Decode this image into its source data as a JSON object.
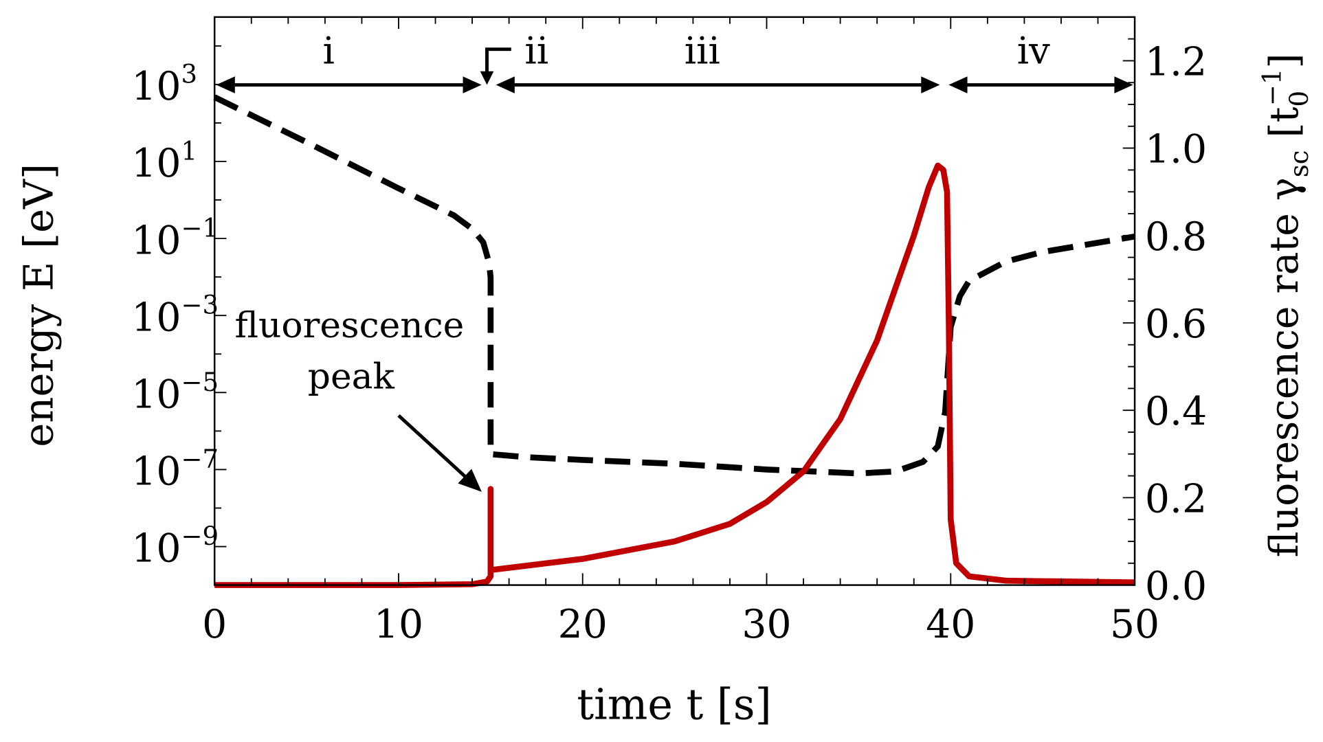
{
  "chart_data": {
    "type": "line",
    "title": "",
    "xlabel": "time t [s]",
    "ylabel": "energy E [eV]",
    "y2label": {
      "main": "fluorescence rate γ",
      "sub": "sc",
      "unit_open": " [t",
      "unit_sub": "0",
      "unit_sup": "−1",
      "unit_close": "]"
    },
    "xlim": [
      0,
      50
    ],
    "ylim_log10": [
      -10,
      4.75
    ],
    "y2lim": [
      0,
      1.3
    ],
    "x_ticks": [
      "0",
      "10",
      "20",
      "30",
      "40",
      "50"
    ],
    "y_ticks": [
      {
        "base": "10",
        "exp": "3"
      },
      {
        "base": "10",
        "exp": "1"
      },
      {
        "base": "10",
        "exp": "−1"
      },
      {
        "base": "10",
        "exp": "−3"
      },
      {
        "base": "10",
        "exp": "−5"
      },
      {
        "base": "10",
        "exp": "−7"
      },
      {
        "base": "10",
        "exp": "−9"
      }
    ],
    "y2_ticks": [
      "0.0",
      "0.2",
      "0.4",
      "0.6",
      "0.8",
      "1.0",
      "1.2"
    ],
    "grid": false,
    "series": [
      {
        "name": "energy E",
        "axis": "left",
        "style": "dashed",
        "color": "#000000",
        "x": [
          0,
          5,
          10,
          13,
          14,
          14.6,
          14.9,
          15,
          15,
          17,
          20,
          25,
          30,
          35,
          37,
          38.5,
          39.3,
          39.7,
          40,
          40.5,
          41,
          43,
          45,
          50
        ],
        "log10_y": [
          2.67,
          1.5,
          0.3,
          -0.4,
          -0.75,
          -1.1,
          -1.6,
          -2.0,
          -6.6,
          -6.68,
          -6.75,
          -6.85,
          -7.0,
          -7.1,
          -7.05,
          -6.8,
          -6.4,
          -5.5,
          -3.3,
          -2.5,
          -2.1,
          -1.6,
          -1.35,
          -0.95
        ]
      },
      {
        "name": "fluorescence rate",
        "axis": "right",
        "style": "solid",
        "color": "#c00000",
        "x": [
          0,
          10,
          14,
          14.8,
          15,
          15,
          15,
          15.1,
          20,
          25,
          28,
          30,
          32,
          34,
          36,
          37,
          38,
          38.8,
          39.3,
          39.6,
          39.8,
          39.9,
          40,
          40.3,
          41,
          43,
          50
        ],
        "y": [
          0,
          0,
          0.002,
          0.008,
          0.02,
          0.22,
          0.035,
          0.035,
          0.06,
          0.1,
          0.14,
          0.19,
          0.26,
          0.38,
          0.56,
          0.68,
          0.8,
          0.91,
          0.96,
          0.95,
          0.9,
          0.6,
          0.15,
          0.05,
          0.02,
          0.01,
          0.006
        ]
      }
    ],
    "regions": [
      {
        "label": "i",
        "from": 0,
        "to": 14.6,
        "label_x": 6.2
      },
      {
        "label": "ii",
        "from": 14.8,
        "to": 14.8,
        "label_x": 17.5
      },
      {
        "label": "iii",
        "from": 15.2,
        "to": 39.5,
        "label_x": 26.5
      },
      {
        "label": "iv",
        "from": 39.8,
        "to": 50,
        "label_x": 44.5
      }
    ],
    "annotations": [
      {
        "text_line1": "fluorescence",
        "text_line2": "peak",
        "points_to_x": 15,
        "points_to_y2": 0.22
      }
    ]
  }
}
